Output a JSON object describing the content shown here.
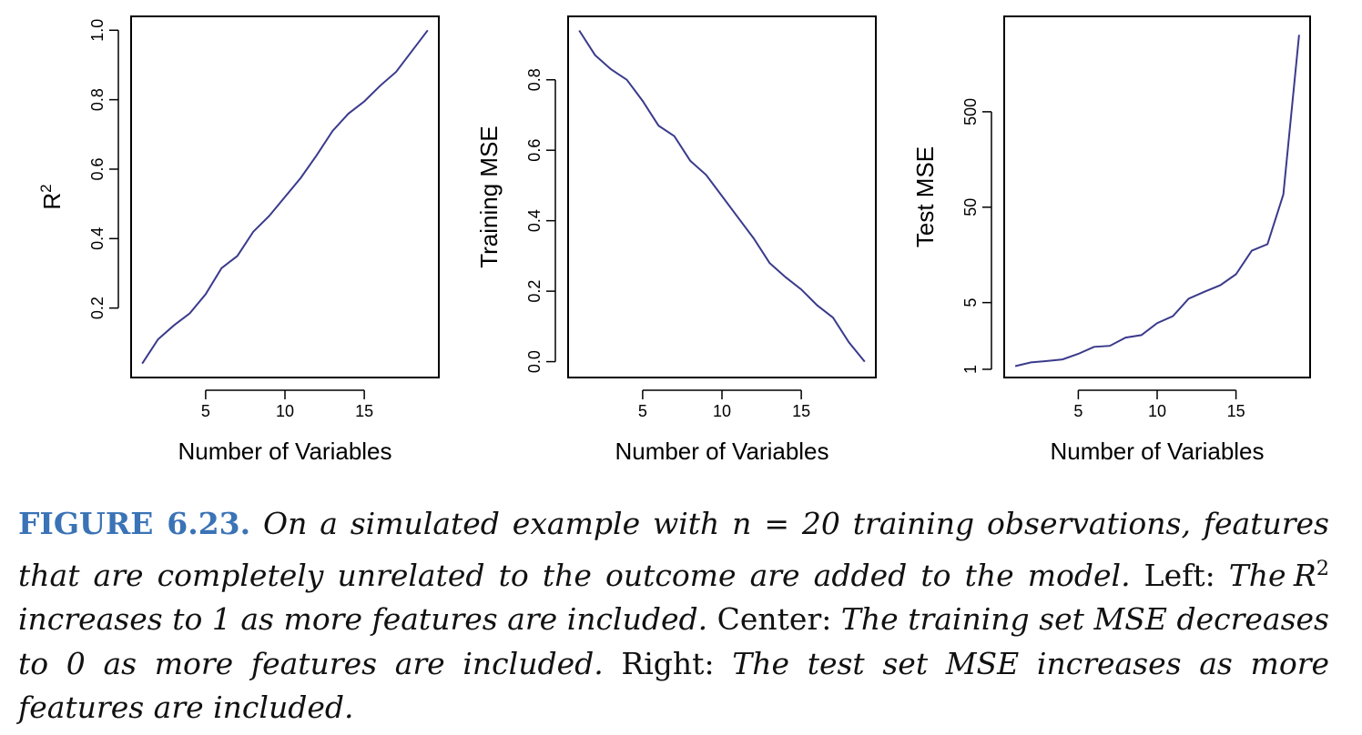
{
  "chart_data": [
    {
      "type": "line",
      "xlabel": "Number of Variables",
      "ylabel": "R",
      "ylabel_superscript": "2",
      "x_ticks": [
        5,
        10,
        15
      ],
      "y_ticks": [
        0.2,
        0.4,
        0.6,
        0.8,
        1.0
      ],
      "y_tick_labels": [
        "0.2",
        "0.4",
        "0.6",
        "0.8",
        "1.0"
      ],
      "xlim": [
        0.3,
        19.7
      ],
      "ylim": [
        0.0,
        1.04
      ],
      "y_scale": "linear",
      "line_color": "#3a3a8c",
      "x": [
        1,
        2,
        3,
        4,
        5,
        6,
        7,
        8,
        9,
        10,
        11,
        12,
        13,
        14,
        15,
        16,
        17,
        18,
        19
      ],
      "y": [
        0.04,
        0.11,
        0.15,
        0.185,
        0.24,
        0.315,
        0.35,
        0.42,
        0.465,
        0.52,
        0.575,
        0.64,
        0.71,
        0.76,
        0.795,
        0.84,
        0.88,
        0.94,
        1.0
      ]
    },
    {
      "type": "line",
      "xlabel": "Number of Variables",
      "ylabel": "Training MSE",
      "x_ticks": [
        5,
        10,
        15
      ],
      "y_ticks": [
        0.0,
        0.2,
        0.4,
        0.6,
        0.8
      ],
      "y_tick_labels": [
        "0.0",
        "0.2",
        "0.4",
        "0.6",
        "0.8"
      ],
      "xlim": [
        0.3,
        19.7
      ],
      "ylim": [
        -0.045,
        0.98
      ],
      "y_scale": "linear",
      "line_color": "#3a3a8c",
      "x": [
        1,
        2,
        3,
        4,
        5,
        6,
        7,
        8,
        9,
        10,
        11,
        12,
        13,
        14,
        15,
        16,
        17,
        18,
        19
      ],
      "y": [
        0.94,
        0.87,
        0.83,
        0.8,
        0.74,
        0.67,
        0.64,
        0.57,
        0.53,
        0.47,
        0.41,
        0.35,
        0.28,
        0.24,
        0.205,
        0.16,
        0.125,
        0.055,
        0.0
      ]
    },
    {
      "type": "line",
      "xlabel": "Number of Variables",
      "ylabel": "Test MSE",
      "x_ticks": [
        5,
        10,
        15
      ],
      "y_ticks": [
        1,
        5,
        50,
        500
      ],
      "y_tick_labels": [
        "1",
        "5",
        "50",
        "500"
      ],
      "xlim": [
        0.3,
        19.7
      ],
      "ylim": [
        0.82,
        5000
      ],
      "y_scale": "log",
      "line_color": "#3a3a8c",
      "x": [
        1,
        2,
        3,
        4,
        5,
        6,
        7,
        8,
        9,
        10,
        11,
        12,
        13,
        14,
        15,
        16,
        17,
        18,
        19
      ],
      "y": [
        1.08,
        1.18,
        1.22,
        1.27,
        1.45,
        1.72,
        1.76,
        2.15,
        2.28,
        3.05,
        3.6,
        5.5,
        6.5,
        7.6,
        9.9,
        17.5,
        20.5,
        68,
        3200
      ]
    }
  ],
  "caption": {
    "label": "FIGURE 6.23.",
    "sentence1_a": "On a simulated example with",
    "sentence1_n": "n",
    "sentence1_eq": "=",
    "sentence1_b": "20 training observations, features that are completely unrelated to the outcome are added to the model.",
    "left_label": "Left:",
    "left_a": "The",
    "left_r": "R",
    "left_sup": "2",
    "left_b": "increases to 1 as more features are included.",
    "center_label": "Center:",
    "center_text": "The training set MSE decreases to 0 as more features are included.",
    "right_label": "Right:",
    "right_text": "The test set MSE increases as more features are included."
  }
}
